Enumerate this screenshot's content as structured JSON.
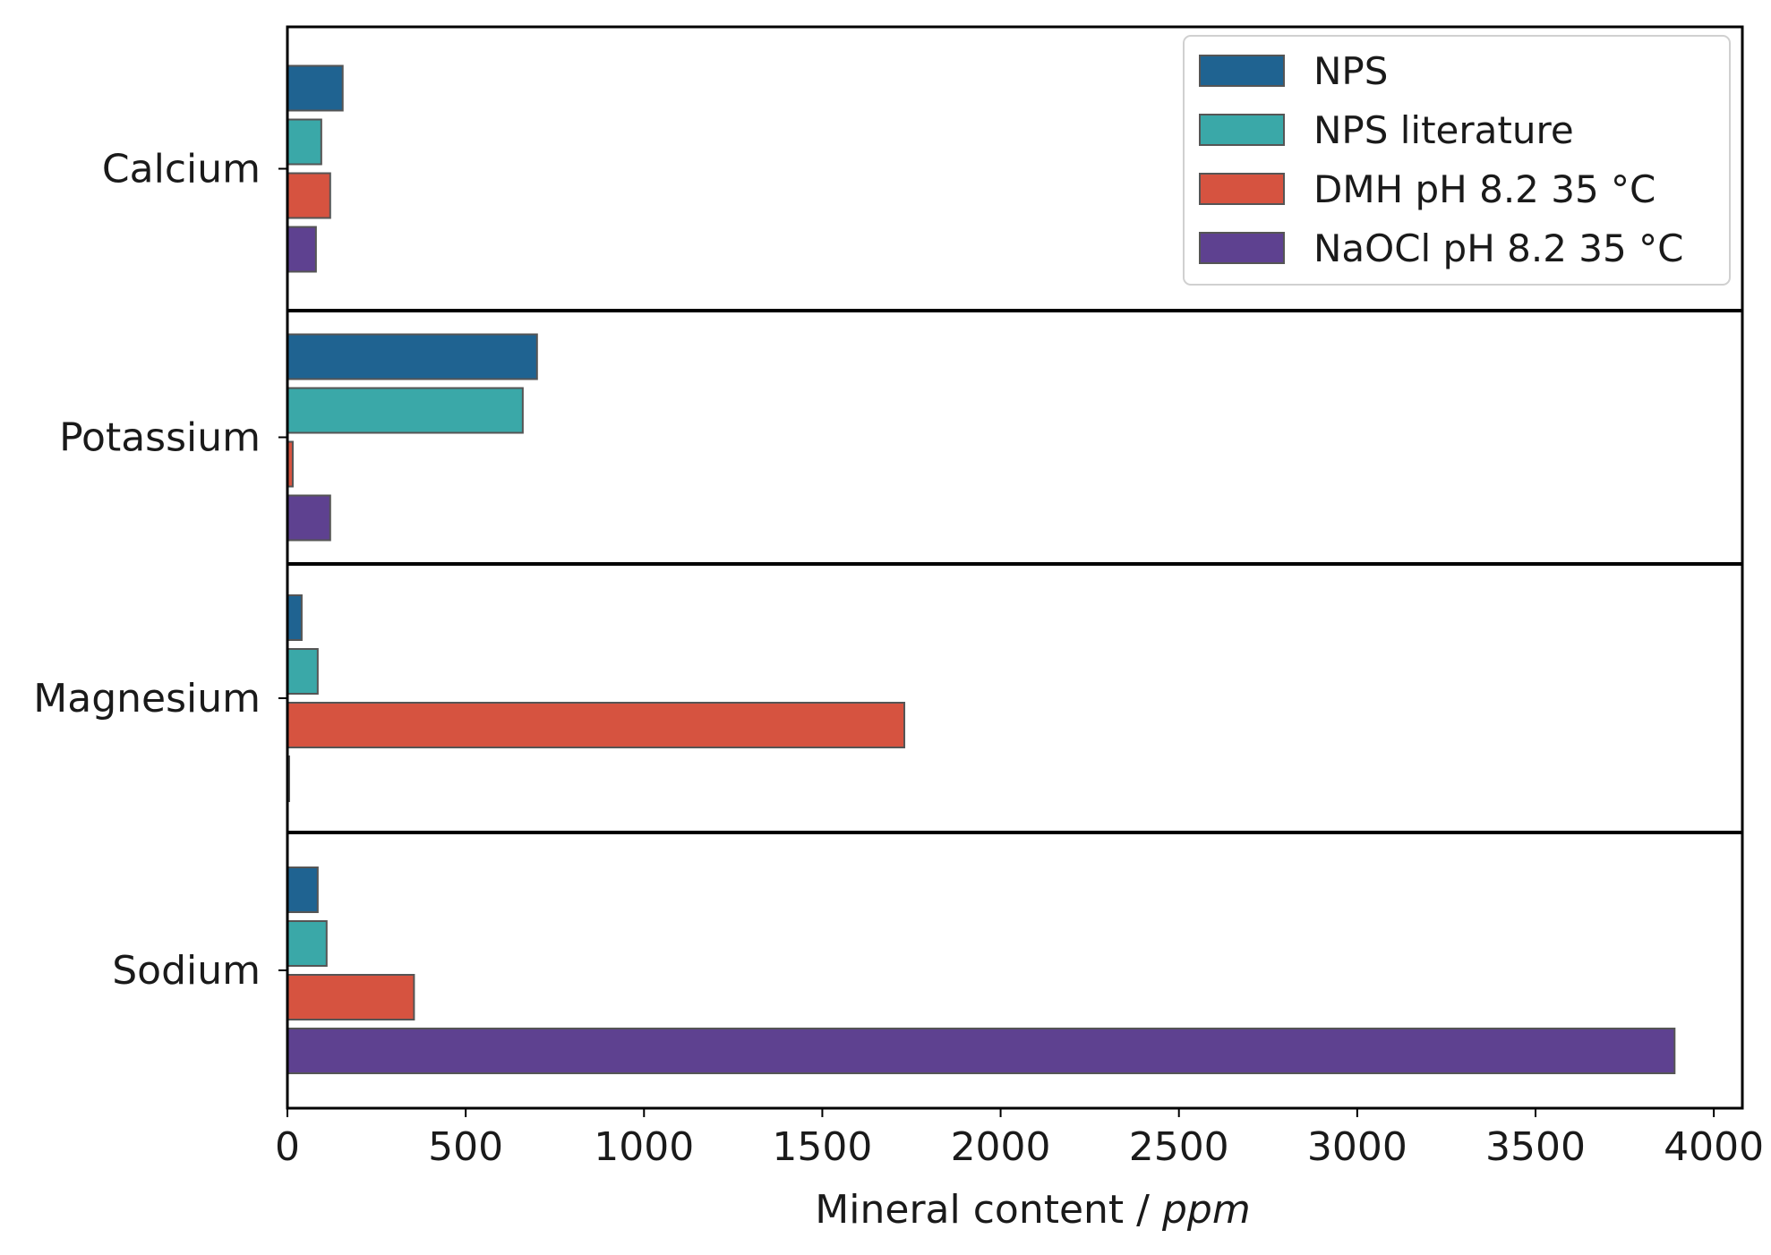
{
  "chart_data": {
    "type": "bar",
    "orientation": "horizontal",
    "categories": [
      "Calcium",
      "Potassium",
      "Magnesium",
      "Sodium"
    ],
    "series": [
      {
        "name": "NPS",
        "color": "#1f6391",
        "values": [
          155,
          700,
          40,
          85
        ]
      },
      {
        "name": "NPS literature",
        "color": "#3aa8a8",
        "values": [
          95,
          660,
          85,
          110
        ]
      },
      {
        "name": "DMH pH 8.2 35 °C",
        "color": "#d65340",
        "values": [
          120,
          15,
          1730,
          355
        ]
      },
      {
        "name": "NaOCl pH 8.2 35 °C",
        "color": "#5e4190",
        "values": [
          80,
          120,
          5,
          3890
        ]
      }
    ],
    "xlabel": {
      "text": "Mineral content / ",
      "unit": "ppm"
    },
    "xlim": [
      0,
      4080
    ],
    "xticks": [
      0,
      500,
      1000,
      1500,
      2000,
      2500,
      3000,
      3500,
      4000
    ],
    "grid": false,
    "legend": "top-right",
    "category_separators": true
  }
}
